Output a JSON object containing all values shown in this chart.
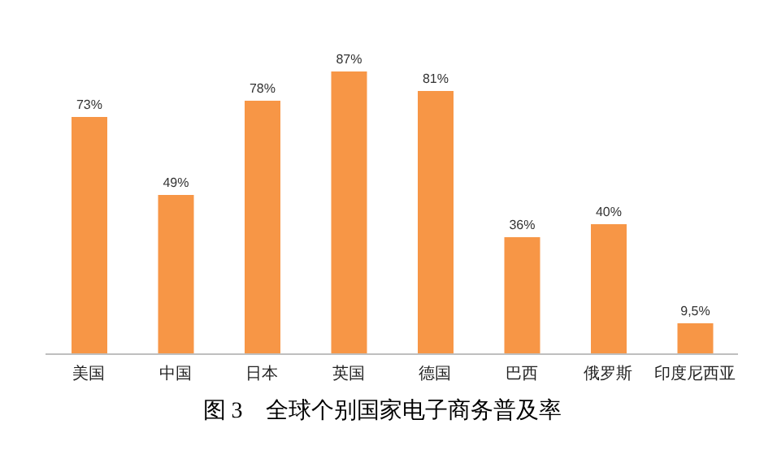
{
  "chart_data": {
    "type": "bar",
    "title": "图 3　全球个别国家电子商务普及率",
    "categories": [
      "美国",
      "中国",
      "日本",
      "英国",
      "德国",
      "巴西",
      "俄罗斯",
      "印度尼西亚"
    ],
    "values": [
      73,
      49,
      78,
      87,
      81,
      36,
      40,
      9.5
    ],
    "value_labels": [
      "73%",
      "49%",
      "78%",
      "87%",
      "81%",
      "36%",
      "40%",
      "9,5%"
    ],
    "color": "#f79646",
    "tick_labels": "x"
  }
}
